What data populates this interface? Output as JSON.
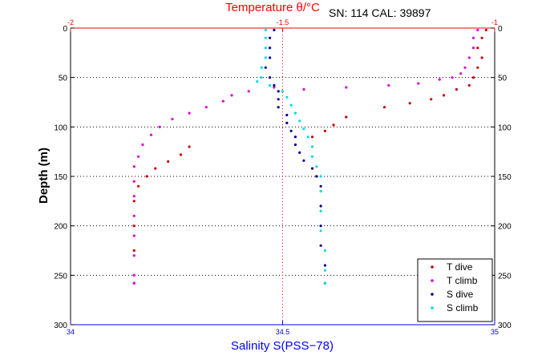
{
  "figure": {
    "top_title": "Temperature θ/°C",
    "annotation": "SN: 114  CAL: 39897",
    "ylabel": "Depth (m)",
    "xlabel": "Salinity S(PSS−78)"
  },
  "chart_data": {
    "type": "scatter",
    "grid": "dotted, horizontal lines at each depth tick; vertical line at center",
    "legend_position": "bottom-right",
    "y_axis": {
      "label": "Depth (m)",
      "range": [
        0,
        300
      ],
      "reversed": true,
      "ticks": [
        "0",
        "50",
        "100",
        "150",
        "200",
        "250",
        "300"
      ]
    },
    "x_axis_top": {
      "label": "Temperature θ/°C",
      "range": [
        -2,
        -1
      ],
      "ticks": [
        "-2",
        "-1.5",
        "-1"
      ],
      "color": "#ff0000"
    },
    "x_axis_bottom": {
      "label": "Salinity S(PSS−78)",
      "range": [
        34,
        35
      ],
      "ticks": [
        "34",
        "34.5",
        "35"
      ],
      "color": "#0000ff"
    },
    "series": [
      {
        "name": "T dive",
        "axis": "temperature",
        "color": "#cc0000",
        "points": [
          [
            -1.02,
            2
          ],
          [
            -1.03,
            10
          ],
          [
            -1.04,
            20
          ],
          [
            -1.03,
            30
          ],
          [
            -1.04,
            40
          ],
          [
            -1.05,
            50
          ],
          [
            -1.06,
            58
          ],
          [
            -1.09,
            62
          ],
          [
            -1.12,
            68
          ],
          [
            -1.15,
            72
          ],
          [
            -1.2,
            76
          ],
          [
            -1.26,
            80
          ],
          [
            -1.35,
            90
          ],
          [
            -1.38,
            98
          ],
          [
            -1.4,
            104
          ],
          [
            -1.43,
            110
          ],
          [
            -1.72,
            120
          ],
          [
            -1.74,
            128
          ],
          [
            -1.77,
            135
          ],
          [
            -1.8,
            142
          ],
          [
            -1.82,
            150
          ],
          [
            -1.84,
            160
          ],
          [
            -1.85,
            175
          ],
          [
            -1.85,
            200
          ],
          [
            -1.85,
            225
          ],
          [
            -1.85,
            250
          ],
          [
            -1.85,
            258
          ]
        ]
      },
      {
        "name": "T climb",
        "axis": "temperature",
        "color": "#dd00dd",
        "points": [
          [
            -1.04,
            2
          ],
          [
            -1.05,
            10
          ],
          [
            -1.05,
            20
          ],
          [
            -1.06,
            30
          ],
          [
            -1.07,
            40
          ],
          [
            -1.08,
            46
          ],
          [
            -1.1,
            50
          ],
          [
            -1.13,
            52
          ],
          [
            -1.18,
            56
          ],
          [
            -1.25,
            58
          ],
          [
            -1.35,
            60
          ],
          [
            -1.45,
            62
          ],
          [
            -1.52,
            60
          ],
          [
            -1.58,
            64
          ],
          [
            -1.62,
            68
          ],
          [
            -1.64,
            74
          ],
          [
            -1.68,
            80
          ],
          [
            -1.72,
            86
          ],
          [
            -1.76,
            92
          ],
          [
            -1.79,
            100
          ],
          [
            -1.81,
            108
          ],
          [
            -1.83,
            118
          ],
          [
            -1.84,
            130
          ],
          [
            -1.85,
            140
          ],
          [
            -1.85,
            155
          ],
          [
            -1.85,
            170
          ],
          [
            -1.85,
            190
          ],
          [
            -1.85,
            210
          ],
          [
            -1.85,
            230
          ],
          [
            -1.85,
            250
          ],
          [
            -1.85,
            258
          ]
        ]
      },
      {
        "name": "S dive",
        "axis": "salinity",
        "color": "#000099",
        "points": [
          [
            34.48,
            2
          ],
          [
            34.47,
            10
          ],
          [
            34.47,
            20
          ],
          [
            34.47,
            30
          ],
          [
            34.46,
            40
          ],
          [
            34.47,
            50
          ],
          [
            34.48,
            58
          ],
          [
            34.49,
            64
          ],
          [
            34.49,
            72
          ],
          [
            34.49,
            80
          ],
          [
            34.51,
            88
          ],
          [
            34.51,
            96
          ],
          [
            34.52,
            104
          ],
          [
            34.53,
            110
          ],
          [
            34.53,
            118
          ],
          [
            34.54,
            126
          ],
          [
            34.55,
            134
          ],
          [
            34.57,
            142
          ],
          [
            34.58,
            150
          ],
          [
            34.59,
            160
          ],
          [
            34.59,
            180
          ],
          [
            34.59,
            200
          ],
          [
            34.59,
            220
          ],
          [
            34.6,
            240
          ],
          [
            34.6,
            258
          ]
        ]
      },
      {
        "name": "S climb",
        "axis": "salinity",
        "color": "#00dddd",
        "points": [
          [
            34.46,
            2
          ],
          [
            34.46,
            10
          ],
          [
            34.46,
            20
          ],
          [
            34.46,
            30
          ],
          [
            34.45,
            40
          ],
          [
            34.45,
            50
          ],
          [
            34.44,
            54
          ],
          [
            34.47,
            58
          ],
          [
            34.5,
            64
          ],
          [
            34.51,
            70
          ],
          [
            34.52,
            78
          ],
          [
            34.53,
            86
          ],
          [
            34.54,
            94
          ],
          [
            34.55,
            102
          ],
          [
            34.56,
            110
          ],
          [
            34.57,
            120
          ],
          [
            34.57,
            130
          ],
          [
            34.58,
            140
          ],
          [
            34.59,
            150
          ],
          [
            34.59,
            165
          ],
          [
            34.59,
            185
          ],
          [
            34.59,
            205
          ],
          [
            34.6,
            225
          ],
          [
            34.6,
            245
          ],
          [
            34.6,
            258
          ]
        ]
      }
    ]
  }
}
